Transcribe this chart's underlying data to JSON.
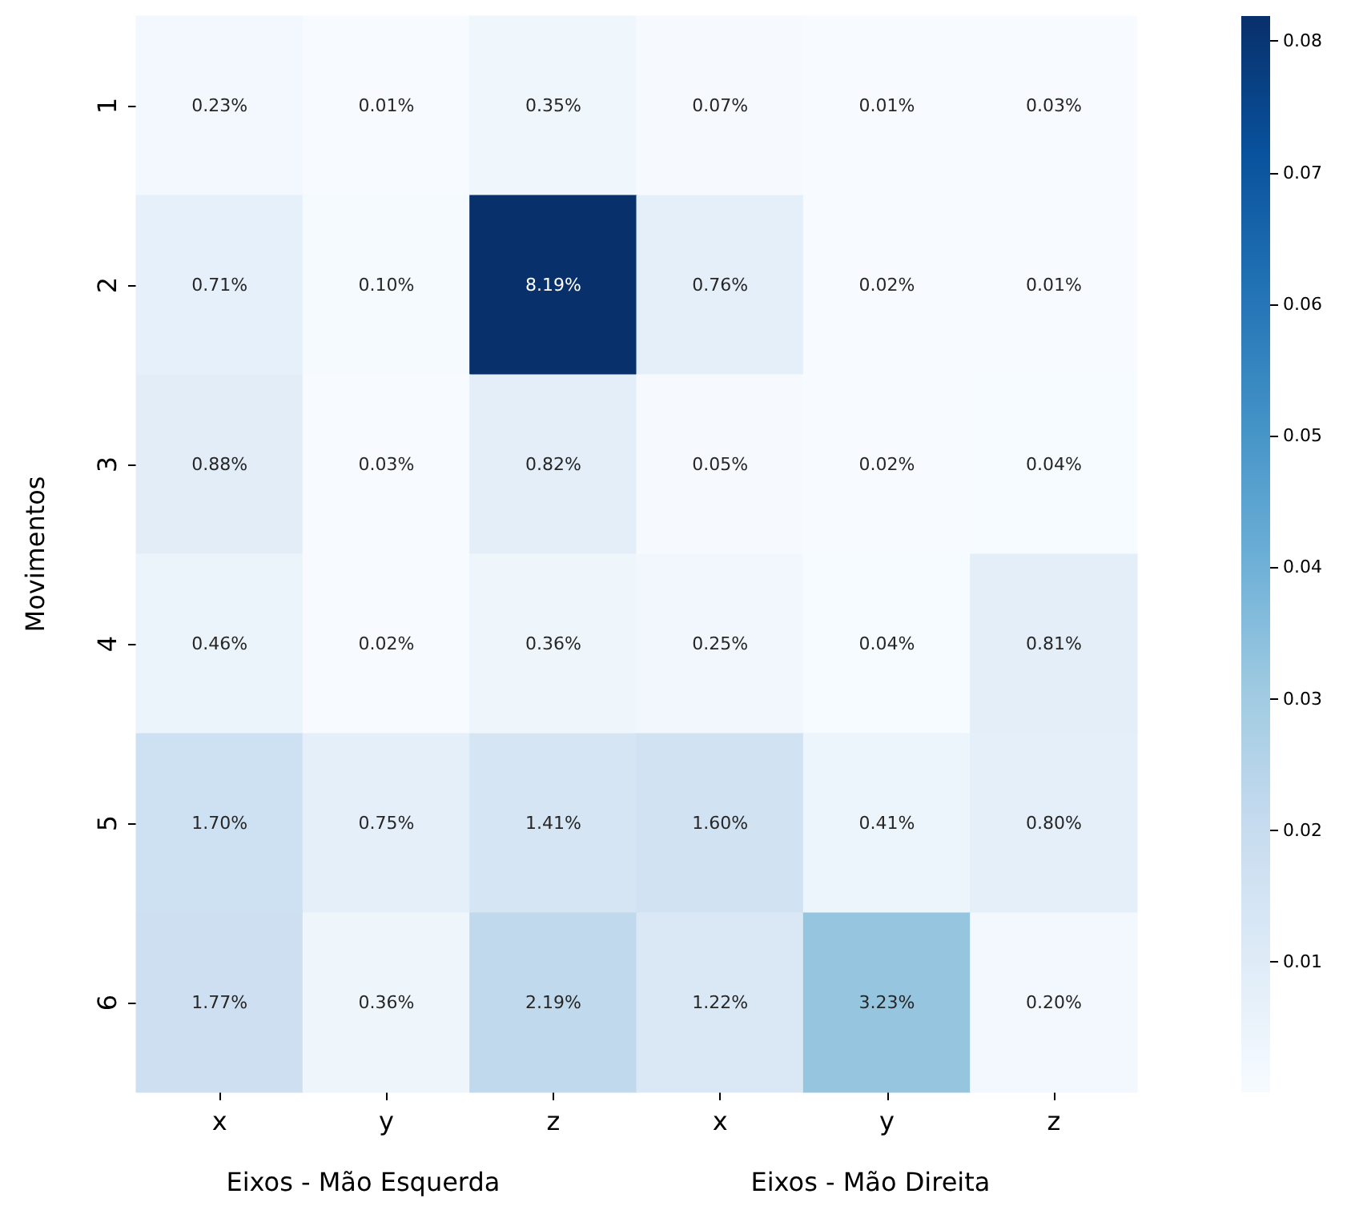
{
  "chart_data": {
    "type": "heatmap",
    "xlabel": "Eixos - Mão Esquerda",
    "ylabel": "Movimentos",
    "annotations": [
      "Eixos - Mão Direita"
    ],
    "categories": [
      "x",
      "y",
      "z",
      "x",
      "y",
      "z"
    ],
    "y_categories": [
      "1",
      "2",
      "3",
      "4",
      "5",
      "6"
    ],
    "cells": [
      [
        0.0023,
        0.0001,
        0.0035,
        0.0007,
        0.0001,
        0.0003
      ],
      [
        0.0071,
        0.001,
        0.0819,
        0.0076,
        0.0002,
        0.0001
      ],
      [
        0.0088,
        0.0003,
        0.0082,
        0.0005,
        0.0002,
        0.0004
      ],
      [
        0.0046,
        0.0002,
        0.0036,
        0.0025,
        0.0004,
        0.0081
      ],
      [
        0.017,
        0.0075,
        0.0141,
        0.016,
        0.0041,
        0.008
      ],
      [
        0.0177,
        0.0036,
        0.0219,
        0.0122,
        0.0323,
        0.002
      ]
    ],
    "cell_labels": [
      [
        "0.23%",
        "0.01%",
        "0.35%",
        "0.07%",
        "0.01%",
        "0.03%"
      ],
      [
        "0.71%",
        "0.10%",
        "8.19%",
        "0.76%",
        "0.02%",
        "0.01%"
      ],
      [
        "0.88%",
        "0.03%",
        "0.82%",
        "0.05%",
        "0.02%",
        "0.04%"
      ],
      [
        "0.46%",
        "0.02%",
        "0.36%",
        "0.25%",
        "0.04%",
        "0.81%"
      ],
      [
        "1.70%",
        "0.75%",
        "1.41%",
        "1.60%",
        "0.41%",
        "0.80%"
      ],
      [
        "1.77%",
        "0.36%",
        "2.19%",
        "1.22%",
        "3.23%",
        "0.20%"
      ]
    ],
    "clim": [
      0.0001,
      0.0819
    ],
    "cticks": [
      0.01,
      0.02,
      0.03,
      0.04,
      0.05,
      0.06,
      0.07,
      0.08
    ]
  }
}
